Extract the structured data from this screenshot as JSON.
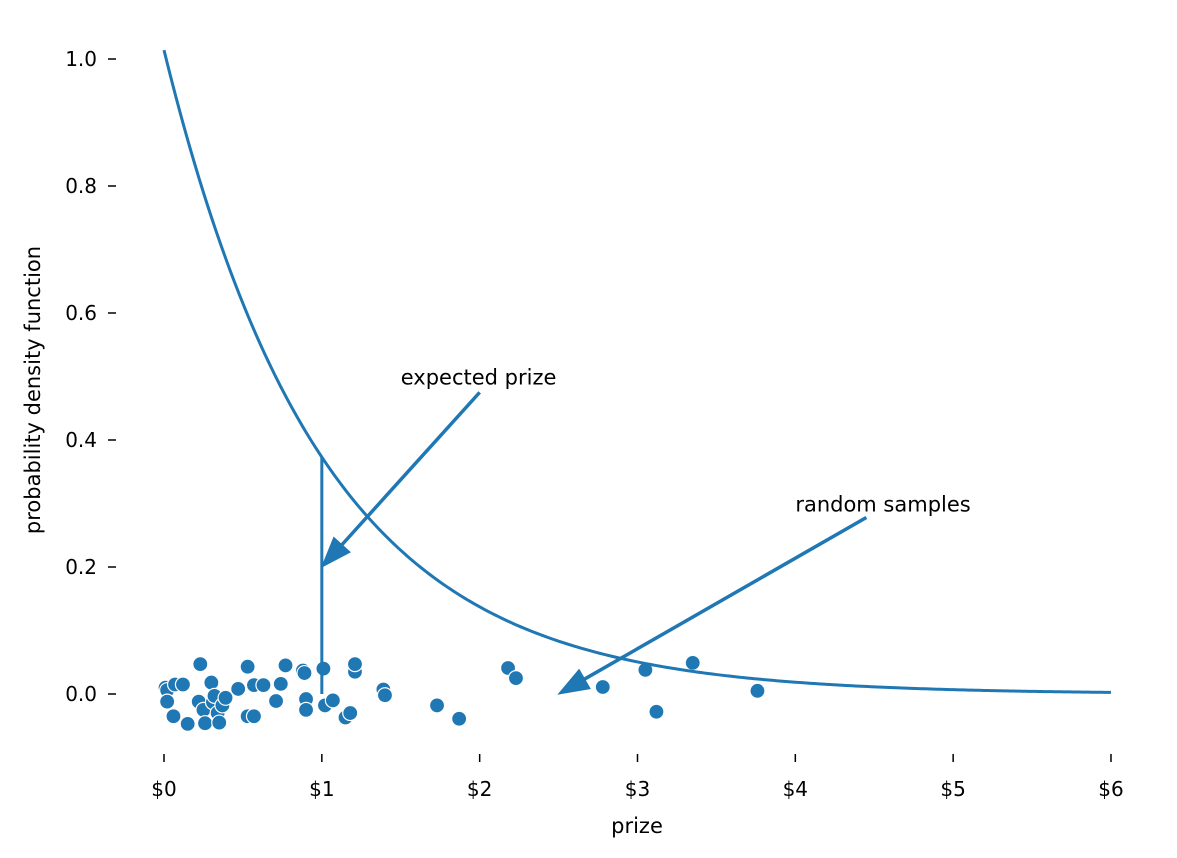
{
  "chart_data": {
    "type": "line",
    "title": "",
    "xlabel": "prize",
    "ylabel": "probability density function",
    "xlim": [
      0,
      6
    ],
    "ylim": [
      -0.1,
      1.05
    ],
    "grid": false,
    "legend": null,
    "accent_color": "#1f77b4",
    "x_ticks": [
      0,
      1,
      2,
      3,
      4,
      5,
      6
    ],
    "x_tick_labels": [
      "$0",
      "$1",
      "$2",
      "$3",
      "$4",
      "$5",
      "$6"
    ],
    "y_ticks": [
      0.0,
      0.2,
      0.4,
      0.6,
      0.8,
      1.0
    ],
    "y_tick_labels": [
      "0.0",
      "0.2",
      "0.4",
      "0.6",
      "0.8",
      "1.0"
    ],
    "series": [
      {
        "name": "pdf",
        "type": "line",
        "function": "exp(-x)",
        "x": [
          0.0,
          0.25,
          0.5,
          0.75,
          1.0,
          1.25,
          1.5,
          1.75,
          2.0,
          2.5,
          3.0,
          3.5,
          4.0,
          4.5,
          5.0,
          5.5,
          6.0
        ],
        "y": [
          1.0,
          0.779,
          0.607,
          0.472,
          0.368,
          0.287,
          0.223,
          0.174,
          0.135,
          0.082,
          0.05,
          0.03,
          0.018,
          0.011,
          0.0067,
          0.0041,
          0.0025
        ]
      },
      {
        "name": "expected prize",
        "type": "vline",
        "x": 1.0,
        "y_from": 0.0,
        "y_to": 0.37
      },
      {
        "name": "random samples",
        "type": "scatter",
        "points": [
          [
            0.01,
            0.01
          ],
          [
            0.02,
            0.006
          ],
          [
            0.07,
            0.015
          ],
          [
            0.12,
            0.015
          ],
          [
            0.02,
            -0.012
          ],
          [
            0.06,
            -0.035
          ],
          [
            0.15,
            -0.047
          ],
          [
            0.23,
            0.047
          ],
          [
            0.22,
            -0.012
          ],
          [
            0.25,
            -0.025
          ],
          [
            0.26,
            -0.046
          ],
          [
            0.3,
            0.018
          ],
          [
            0.31,
            -0.013
          ],
          [
            0.32,
            -0.003
          ],
          [
            0.34,
            -0.03
          ],
          [
            0.35,
            -0.045
          ],
          [
            0.37,
            -0.018
          ],
          [
            0.39,
            -0.006
          ],
          [
            0.47,
            0.008
          ],
          [
            0.53,
            0.043
          ],
          [
            0.53,
            -0.035
          ],
          [
            0.57,
            0.014
          ],
          [
            0.57,
            -0.035
          ],
          [
            0.63,
            0.014
          ],
          [
            0.71,
            -0.011
          ],
          [
            0.74,
            0.016
          ],
          [
            0.77,
            0.045
          ],
          [
            0.88,
            0.037
          ],
          [
            0.89,
            0.033
          ],
          [
            0.9,
            -0.008
          ],
          [
            0.9,
            -0.025
          ],
          [
            1.01,
            0.04
          ],
          [
            1.02,
            -0.018
          ],
          [
            1.07,
            -0.01
          ],
          [
            1.15,
            -0.037
          ],
          [
            1.18,
            -0.03
          ],
          [
            1.21,
            0.035
          ],
          [
            1.21,
            0.047
          ],
          [
            1.39,
            0.007
          ],
          [
            1.4,
            -0.002
          ],
          [
            1.73,
            -0.018
          ],
          [
            1.87,
            -0.039
          ],
          [
            2.18,
            0.041
          ],
          [
            2.23,
            0.025
          ],
          [
            2.78,
            0.011
          ],
          [
            3.05,
            0.038
          ],
          [
            3.12,
            -0.028
          ],
          [
            3.35,
            0.049
          ],
          [
            3.76,
            0.005
          ]
        ]
      }
    ],
    "annotations": [
      {
        "text": "expected prize",
        "text_xy": [
          1.5,
          0.5
        ],
        "arrow_from": [
          2.0,
          0.475
        ],
        "arrow_to": [
          1.0,
          0.2
        ]
      },
      {
        "text": "random samples",
        "text_xy": [
          4.0,
          0.3
        ],
        "arrow_from": [
          4.45,
          0.278
        ],
        "arrow_to": [
          2.5,
          0.0
        ]
      }
    ]
  }
}
